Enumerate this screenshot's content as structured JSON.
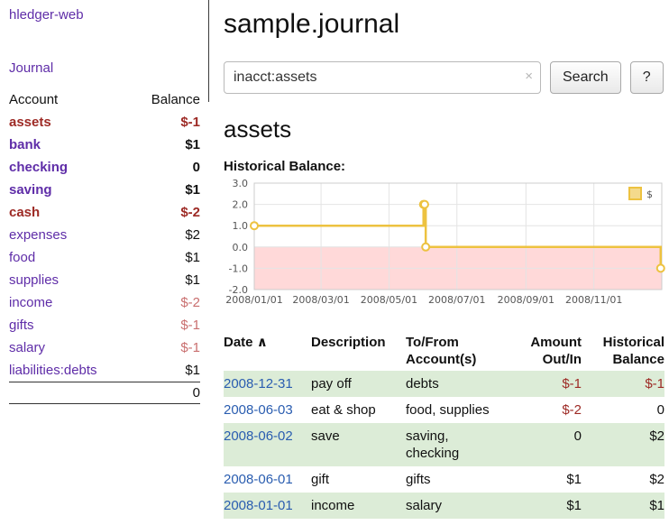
{
  "colors": {
    "link_purple": "#5f2da8",
    "date_link_blue": "#2a5db0",
    "negative_strong": "#9d2a25",
    "negative_muted": "#c96f6f",
    "row_green": "#dcecd7",
    "chart_line": "#edc240",
    "chart_negative_region": "#ffd9d9"
  },
  "sidebar": {
    "app_title": "hledger-web",
    "journal_link": "Journal",
    "accounts": {
      "col_account": "Account",
      "col_balance": "Balance",
      "rows": [
        {
          "name": "assets",
          "balance": "$-1"
        },
        {
          "name": "bank",
          "balance": "$1"
        },
        {
          "name": "checking",
          "balance": "0"
        },
        {
          "name": "saving",
          "balance": "$1"
        },
        {
          "name": "cash",
          "balance": "$-2"
        },
        {
          "name": "expenses",
          "balance": "$2"
        },
        {
          "name": "food",
          "balance": "$1"
        },
        {
          "name": "supplies",
          "balance": "$1"
        },
        {
          "name": "income",
          "balance": "$-2"
        },
        {
          "name": "gifts",
          "balance": "$-1"
        },
        {
          "name": "salary",
          "balance": "$-1"
        },
        {
          "name": "liabilities:debts",
          "balance": "$1"
        }
      ],
      "total": "0"
    }
  },
  "main": {
    "title": "sample.journal",
    "search": {
      "value": "inacct:assets",
      "clear_icon": "×",
      "search_button": "Search",
      "help_button": "?"
    },
    "account_heading": "assets",
    "chart_heading": "Historical Balance:"
  },
  "chart_data": {
    "type": "line",
    "step": true,
    "title": "Historical Balance",
    "series": [
      {
        "name": "$",
        "color": "#edc240",
        "points": [
          {
            "date": "2008-01-01",
            "day": 0,
            "value": 1
          },
          {
            "date": "2008-06-01",
            "day": 152,
            "value": 2
          },
          {
            "date": "2008-06-02",
            "day": 153,
            "value": 2
          },
          {
            "date": "2008-06-03",
            "day": 154,
            "value": 0
          },
          {
            "date": "2008-12-31",
            "day": 365,
            "value": -1
          }
        ]
      }
    ],
    "x_ticks": [
      {
        "label": "2008/01/01",
        "day": 0
      },
      {
        "label": "2008/03/01",
        "day": 60
      },
      {
        "label": "2008/05/01",
        "day": 121
      },
      {
        "label": "2008/07/01",
        "day": 182
      },
      {
        "label": "2008/09/01",
        "day": 244
      },
      {
        "label": "2008/11/01",
        "day": 305
      }
    ],
    "y_ticks": [
      "3.0",
      "2.0",
      "1.0",
      "0.0",
      "-1.0",
      "-2.0"
    ],
    "ylim": [
      -2,
      3
    ],
    "xlim_days": [
      0,
      366
    ],
    "grid": true,
    "legend": {
      "label": "$",
      "position": "top-right"
    },
    "negative_region": true,
    "negative_region_color": "#ffd9d9"
  },
  "register": {
    "headers": {
      "date": "Date",
      "sort_indicator": "∧",
      "description": "Description",
      "accounts": "To/From Account(s)",
      "amount": "Amount Out/In",
      "balance": "Historical Balance"
    },
    "rows": [
      {
        "date": "2008-12-31",
        "description": "pay off",
        "accounts": "debts",
        "amount": "$-1",
        "balance": "$-1"
      },
      {
        "date": "2008-06-03",
        "description": "eat & shop",
        "accounts": "food, supplies",
        "amount": "$-2",
        "balance": "0"
      },
      {
        "date": "2008-06-02",
        "description": "save",
        "accounts": "saving, checking",
        "amount": "0",
        "balance": "$2"
      },
      {
        "date": "2008-06-01",
        "description": "gift",
        "accounts": "gifts",
        "amount": "$1",
        "balance": "$2"
      },
      {
        "date": "2008-01-01",
        "description": "income",
        "accounts": "salary",
        "amount": "$1",
        "balance": "$1"
      }
    ]
  }
}
